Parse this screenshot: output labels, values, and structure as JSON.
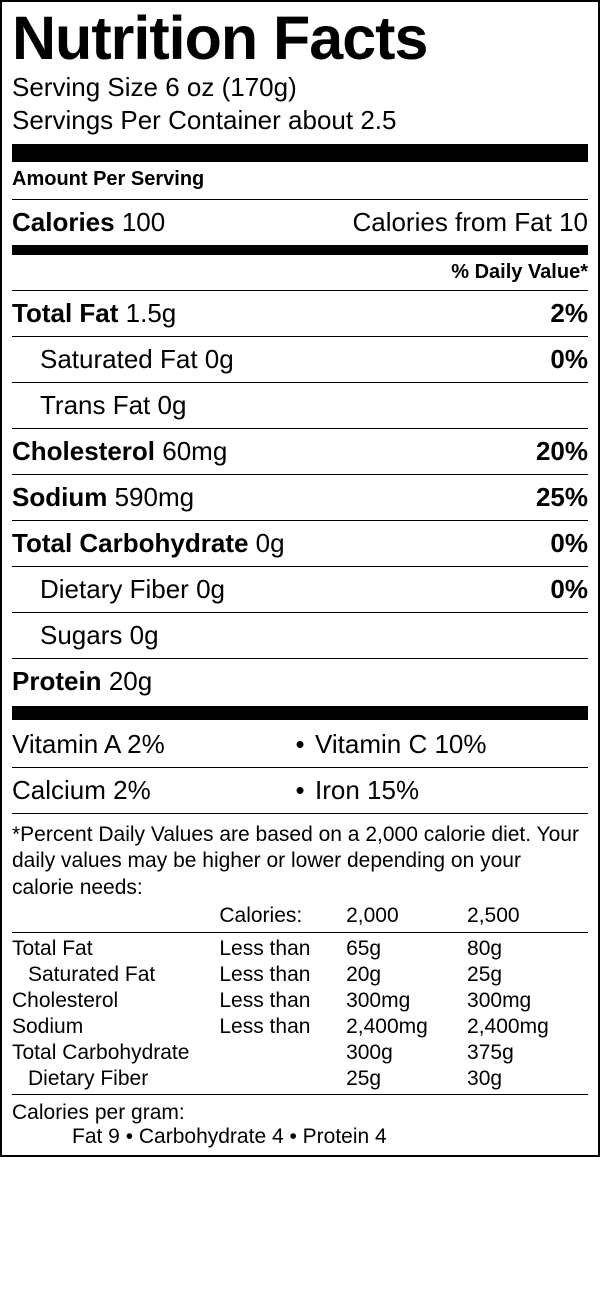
{
  "title": "Nutrition Facts",
  "serving": {
    "size_label": "Serving Size",
    "size_value": "6 oz (170g)",
    "per_container_label": "Servings Per Container",
    "per_container_value": "about 2.5"
  },
  "amount_per_serving": "Amount Per Serving",
  "calories": {
    "label": "Calories",
    "value": "100",
    "from_fat_label": "Calories from Fat",
    "from_fat_value": "10"
  },
  "dv_header": "% Daily Value*",
  "nutrients": {
    "total_fat": {
      "label": "Total Fat",
      "value": "1.5g",
      "dv": "2%"
    },
    "sat_fat": {
      "label": "Saturated Fat",
      "value": "0g",
      "dv": "0%"
    },
    "trans_fat": {
      "label": "Trans Fat",
      "value": "0g",
      "dv": ""
    },
    "cholesterol": {
      "label": "Cholesterol",
      "value": "60mg",
      "dv": "20%"
    },
    "sodium": {
      "label": "Sodium",
      "value": "590mg",
      "dv": "25%"
    },
    "carb": {
      "label": "Total Carbohydrate",
      "value": "0g",
      "dv": "0%"
    },
    "fiber": {
      "label": "Dietary Fiber",
      "value": "0g",
      "dv": "0%"
    },
    "sugars": {
      "label": "Sugars",
      "value": "0g",
      "dv": ""
    },
    "protein": {
      "label": "Protein",
      "value": "20g",
      "dv": ""
    }
  },
  "vitamins": {
    "a": {
      "label": "Vitamin A",
      "value": "2%"
    },
    "c": {
      "label": "Vitamin C",
      "value": "10%"
    },
    "calcium": {
      "label": "Calcium",
      "value": "2%"
    },
    "iron": {
      "label": "Iron",
      "value": "15%"
    }
  },
  "footnote": "*Percent Daily Values are based on a 2,000 calorie diet. Your daily values may be higher or lower depending on your calorie needs:",
  "reftable": {
    "header": {
      "c2": "Calories:",
      "c3": "2,000",
      "c4": "2,500"
    },
    "rows": [
      {
        "c1": "Total Fat",
        "c2": "Less than",
        "c3": "65g",
        "c4": "80g",
        "indent": false
      },
      {
        "c1": "Saturated Fat",
        "c2": "Less than",
        "c3": "20g",
        "c4": "25g",
        "indent": true
      },
      {
        "c1": "Cholesterol",
        "c2": "Less than",
        "c3": "300mg",
        "c4": "300mg",
        "indent": false
      },
      {
        "c1": "Sodium",
        "c2": "Less than",
        "c3": "2,400mg",
        "c4": "2,400mg",
        "indent": false
      },
      {
        "c1": "Total Carbohydrate",
        "c2": "",
        "c3": "300g",
        "c4": "375g",
        "indent": false
      },
      {
        "c1": "Dietary Fiber",
        "c2": "",
        "c3": "25g",
        "c4": "30g",
        "indent": true
      }
    ]
  },
  "cal_per_gram": {
    "title": "Calories per gram:",
    "line": "Fat 9   •   Carbohydrate 4   •   Protein 4"
  }
}
